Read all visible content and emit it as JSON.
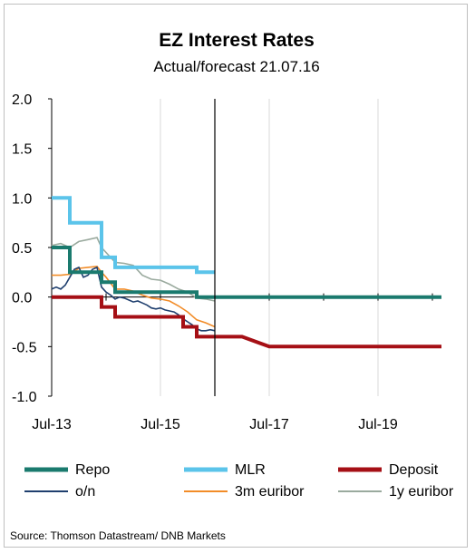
{
  "chart_data": {
    "type": "line",
    "title": "EZ Interest Rates",
    "subtitle": "Actual/forecast 21.07.16",
    "source": "Source:  Thomson Datastream/  DNB Markets",
    "ylim": [
      -1.0,
      2.0
    ],
    "yticks": [
      "2.0",
      "1.5",
      "1.0",
      "0.5",
      "0.0",
      "-0.5",
      "-1.0"
    ],
    "yticks_values": [
      2.0,
      1.5,
      1.0,
      0.5,
      0.0,
      -0.5,
      -1.0
    ],
    "xlim": [
      "2013-07",
      "2020-09"
    ],
    "xticks": [
      {
        "label": "Jul-13",
        "date": "2013-07"
      },
      {
        "label": "Jul-15",
        "date": "2015-07"
      },
      {
        "label": "Jul-17",
        "date": "2017-07"
      },
      {
        "label": "Jul-19",
        "date": "2019-07"
      }
    ],
    "forecast_start": "2016-07",
    "grid": "vertical",
    "legend_position": "bottom",
    "colors": {
      "repo": "#1a7a6e",
      "mlr": "#5bc4ea",
      "deposit": "#a50f15",
      "on": "#1f3f6e",
      "euribor3m": "#f28c28",
      "euribor1y": "#9aaa9e"
    },
    "series": [
      {
        "key": "repo",
        "name": "Repo",
        "style": "thick",
        "points": [
          [
            "2013-07",
            0.5
          ],
          [
            "2013-11",
            0.5
          ],
          [
            "2013-11",
            0.25
          ],
          [
            "2014-06",
            0.25
          ],
          [
            "2014-06",
            0.15
          ],
          [
            "2014-09",
            0.15
          ],
          [
            "2014-09",
            0.05
          ],
          [
            "2016-03",
            0.05
          ],
          [
            "2016-03",
            0.0
          ],
          [
            "2020-09",
            0.0
          ]
        ]
      },
      {
        "key": "mlr",
        "name": "MLR",
        "style": "thick",
        "points": [
          [
            "2013-07",
            1.0
          ],
          [
            "2013-11",
            1.0
          ],
          [
            "2013-11",
            0.75
          ],
          [
            "2014-06",
            0.75
          ],
          [
            "2014-06",
            0.4
          ],
          [
            "2014-09",
            0.4
          ],
          [
            "2014-09",
            0.3
          ],
          [
            "2016-03",
            0.3
          ],
          [
            "2016-03",
            0.25
          ],
          [
            "2016-07",
            0.25
          ]
        ]
      },
      {
        "key": "deposit",
        "name": "Deposit",
        "style": "thick",
        "points": [
          [
            "2013-07",
            0.0
          ],
          [
            "2014-06",
            0.0
          ],
          [
            "2014-06",
            -0.1
          ],
          [
            "2014-09",
            -0.1
          ],
          [
            "2014-09",
            -0.2
          ],
          [
            "2015-12",
            -0.2
          ],
          [
            "2015-12",
            -0.3
          ],
          [
            "2016-03",
            -0.3
          ],
          [
            "2016-03",
            -0.4
          ],
          [
            "2017-01",
            -0.4
          ],
          [
            "2017-07",
            -0.5
          ],
          [
            "2020-09",
            -0.5
          ]
        ]
      },
      {
        "key": "on",
        "name": "o/n",
        "style": "thin",
        "points": [
          [
            "2013-07",
            0.08
          ],
          [
            "2013-08",
            0.1
          ],
          [
            "2013-09",
            0.08
          ],
          [
            "2013-10",
            0.12
          ],
          [
            "2013-11",
            0.2
          ],
          [
            "2013-12",
            0.28
          ],
          [
            "2014-01",
            0.3
          ],
          [
            "2014-02",
            0.2
          ],
          [
            "2014-03",
            0.22
          ],
          [
            "2014-04",
            0.28
          ],
          [
            "2014-05",
            0.3
          ],
          [
            "2014-06",
            0.1
          ],
          [
            "2014-07",
            0.05
          ],
          [
            "2014-08",
            0.02
          ],
          [
            "2014-09",
            -0.02
          ],
          [
            "2014-10",
            0.0
          ],
          [
            "2014-11",
            -0.01
          ],
          [
            "2014-12",
            -0.03
          ],
          [
            "2015-01",
            -0.05
          ],
          [
            "2015-02",
            -0.04
          ],
          [
            "2015-03",
            -0.06
          ],
          [
            "2015-04",
            -0.08
          ],
          [
            "2015-05",
            -0.11
          ],
          [
            "2015-06",
            -0.12
          ],
          [
            "2015-07",
            -0.11
          ],
          [
            "2015-08",
            -0.13
          ],
          [
            "2015-09",
            -0.14
          ],
          [
            "2015-10",
            -0.15
          ],
          [
            "2015-11",
            -0.18
          ],
          [
            "2015-12",
            -0.22
          ],
          [
            "2016-01",
            -0.25
          ],
          [
            "2016-02",
            -0.28
          ],
          [
            "2016-03",
            -0.32
          ],
          [
            "2016-04",
            -0.34
          ],
          [
            "2016-05",
            -0.34
          ],
          [
            "2016-06",
            -0.33
          ],
          [
            "2016-07",
            -0.34
          ]
        ]
      },
      {
        "key": "euribor3m",
        "name": "3m euribor",
        "style": "thin",
        "points": [
          [
            "2013-07",
            0.22
          ],
          [
            "2013-09",
            0.22
          ],
          [
            "2013-11",
            0.23
          ],
          [
            "2014-01",
            0.29
          ],
          [
            "2014-03",
            0.3
          ],
          [
            "2014-05",
            0.31
          ],
          [
            "2014-06",
            0.25
          ],
          [
            "2014-07",
            0.2
          ],
          [
            "2014-09",
            0.08
          ],
          [
            "2014-11",
            0.08
          ],
          [
            "2015-01",
            0.06
          ],
          [
            "2015-03",
            0.02
          ],
          [
            "2015-05",
            -0.01
          ],
          [
            "2015-07",
            -0.02
          ],
          [
            "2015-09",
            -0.04
          ],
          [
            "2015-11",
            -0.09
          ],
          [
            "2016-01",
            -0.15
          ],
          [
            "2016-03",
            -0.23
          ],
          [
            "2016-05",
            -0.26
          ],
          [
            "2016-07",
            -0.3
          ]
        ]
      },
      {
        "key": "euribor1y",
        "name": "1y euribor",
        "style": "thin",
        "points": [
          [
            "2013-07",
            0.52
          ],
          [
            "2013-09",
            0.54
          ],
          [
            "2013-11",
            0.5
          ],
          [
            "2014-01",
            0.56
          ],
          [
            "2014-03",
            0.58
          ],
          [
            "2014-05",
            0.6
          ],
          [
            "2014-06",
            0.5
          ],
          [
            "2014-07",
            0.45
          ],
          [
            "2014-09",
            0.35
          ],
          [
            "2014-11",
            0.34
          ],
          [
            "2015-01",
            0.32
          ],
          [
            "2015-03",
            0.22
          ],
          [
            "2015-05",
            0.18
          ],
          [
            "2015-07",
            0.17
          ],
          [
            "2015-09",
            0.13
          ],
          [
            "2015-11",
            0.08
          ],
          [
            "2016-01",
            0.05
          ],
          [
            "2016-03",
            -0.01
          ],
          [
            "2016-05",
            -0.02
          ],
          [
            "2016-07",
            -0.04
          ]
        ]
      }
    ],
    "legend": [
      {
        "key": "repo",
        "label": "Repo",
        "style": "thick"
      },
      {
        "key": "mlr",
        "label": "MLR",
        "style": "thick"
      },
      {
        "key": "deposit",
        "label": "Deposit",
        "style": "thick"
      },
      {
        "key": "on",
        "label": "o/n",
        "style": "thin"
      },
      {
        "key": "euribor3m",
        "label": "3m euribor",
        "style": "thin"
      },
      {
        "key": "euribor1y",
        "label": "1y euribor",
        "style": "thin"
      }
    ]
  }
}
